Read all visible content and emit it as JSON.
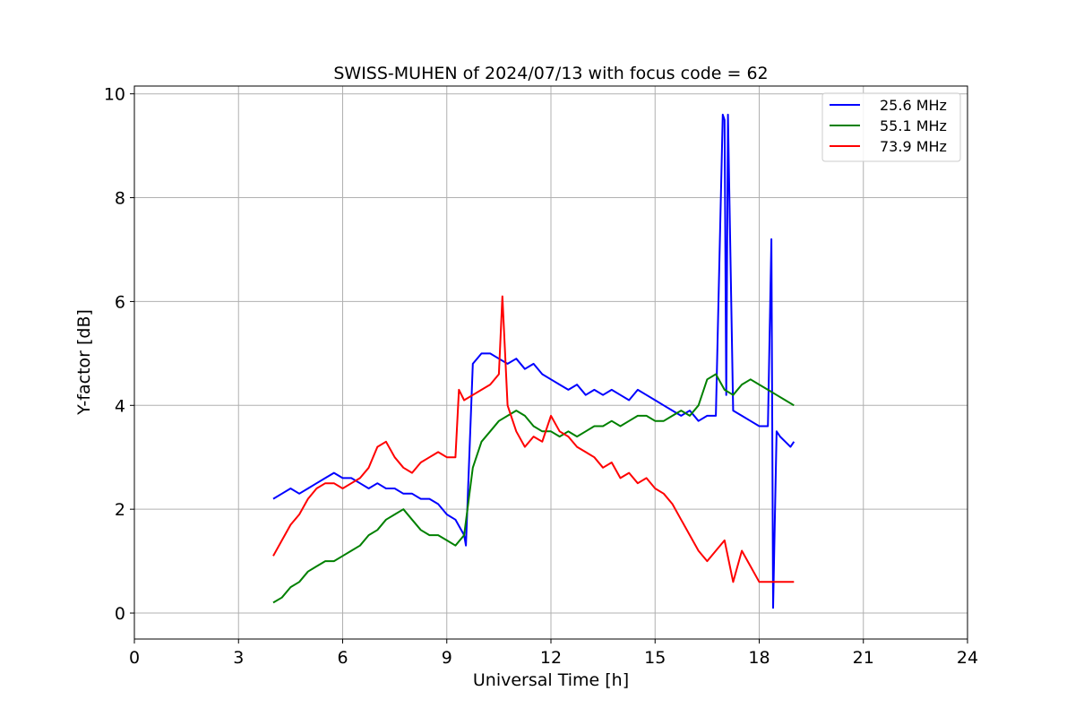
{
  "chart_data": {
    "type": "line",
    "title": "SWISS-MUHEN of 2024/07/13 with focus code = 62",
    "xlabel": "Universal Time [h]",
    "ylabel": "Y-factor [dB]",
    "xlim": [
      0,
      24
    ],
    "ylim": [
      -0.5,
      10.15
    ],
    "xticks": [
      0,
      3,
      6,
      9,
      12,
      15,
      18,
      21,
      24
    ],
    "yticks": [
      0,
      2,
      4,
      6,
      8,
      10
    ],
    "grid": true,
    "legend_position": "top-right",
    "series": [
      {
        "name": "25.6 MHz",
        "color": "#0000ff",
        "x": [
          4.0,
          4.25,
          4.5,
          4.75,
          5.0,
          5.25,
          5.5,
          5.75,
          6.0,
          6.25,
          6.5,
          6.75,
          7.0,
          7.25,
          7.5,
          7.75,
          8.0,
          8.25,
          8.5,
          8.75,
          9.0,
          9.25,
          9.5,
          9.55,
          9.75,
          10.0,
          10.25,
          10.5,
          10.75,
          11.0,
          11.25,
          11.5,
          11.75,
          12.0,
          12.25,
          12.5,
          12.75,
          13.0,
          13.25,
          13.5,
          13.75,
          14.0,
          14.25,
          14.5,
          14.75,
          15.0,
          15.25,
          15.5,
          15.75,
          16.0,
          16.25,
          16.5,
          16.75,
          16.95,
          17.0,
          17.05,
          17.1,
          17.25,
          17.5,
          17.75,
          18.0,
          18.25,
          18.35,
          18.4,
          18.5,
          18.6,
          18.75,
          18.9,
          19.0
        ],
        "y": [
          2.2,
          2.3,
          2.4,
          2.3,
          2.4,
          2.5,
          2.6,
          2.7,
          2.6,
          2.6,
          2.5,
          2.4,
          2.5,
          2.4,
          2.4,
          2.3,
          2.3,
          2.2,
          2.2,
          2.1,
          1.9,
          1.8,
          1.5,
          1.3,
          4.8,
          5.0,
          5.0,
          4.9,
          4.8,
          4.9,
          4.7,
          4.8,
          4.6,
          4.5,
          4.4,
          4.3,
          4.4,
          4.2,
          4.3,
          4.2,
          4.3,
          4.2,
          4.1,
          4.3,
          4.2,
          4.1,
          4.0,
          3.9,
          3.8,
          3.9,
          3.7,
          3.8,
          3.8,
          9.6,
          9.5,
          4.2,
          9.6,
          3.9,
          3.8,
          3.7,
          3.6,
          3.6,
          7.2,
          0.1,
          3.5,
          3.4,
          3.3,
          3.2,
          3.3
        ]
      },
      {
        "name": "55.1 MHz",
        "color": "#008000",
        "x": [
          4.0,
          4.25,
          4.5,
          4.75,
          5.0,
          5.25,
          5.5,
          5.75,
          6.0,
          6.25,
          6.5,
          6.75,
          7.0,
          7.25,
          7.5,
          7.75,
          8.0,
          8.25,
          8.5,
          8.75,
          9.0,
          9.25,
          9.5,
          9.75,
          10.0,
          10.25,
          10.5,
          10.75,
          11.0,
          11.25,
          11.5,
          11.75,
          12.0,
          12.25,
          12.5,
          12.75,
          13.0,
          13.25,
          13.5,
          13.75,
          14.0,
          14.25,
          14.5,
          14.75,
          15.0,
          15.25,
          15.5,
          15.75,
          16.0,
          16.25,
          16.5,
          16.75,
          17.0,
          17.25,
          17.5,
          17.75,
          18.0,
          18.25,
          18.5,
          18.75,
          19.0
        ],
        "y": [
          0.2,
          0.3,
          0.5,
          0.6,
          0.8,
          0.9,
          1.0,
          1.0,
          1.1,
          1.2,
          1.3,
          1.5,
          1.6,
          1.8,
          1.9,
          2.0,
          1.8,
          1.6,
          1.5,
          1.5,
          1.4,
          1.3,
          1.5,
          2.8,
          3.3,
          3.5,
          3.7,
          3.8,
          3.9,
          3.8,
          3.6,
          3.5,
          3.5,
          3.4,
          3.5,
          3.4,
          3.5,
          3.6,
          3.6,
          3.7,
          3.6,
          3.7,
          3.8,
          3.8,
          3.7,
          3.7,
          3.8,
          3.9,
          3.8,
          4.0,
          4.5,
          4.6,
          4.3,
          4.2,
          4.4,
          4.5,
          4.4,
          4.3,
          4.2,
          4.1,
          4.0
        ]
      },
      {
        "name": "73.9 MHz",
        "color": "#ff0000",
        "x": [
          4.0,
          4.25,
          4.5,
          4.75,
          5.0,
          5.25,
          5.5,
          5.75,
          6.0,
          6.25,
          6.5,
          6.75,
          7.0,
          7.25,
          7.5,
          7.75,
          8.0,
          8.25,
          8.5,
          8.75,
          9.0,
          9.25,
          9.35,
          9.5,
          9.75,
          10.0,
          10.25,
          10.5,
          10.6,
          10.75,
          11.0,
          11.25,
          11.5,
          11.75,
          12.0,
          12.25,
          12.5,
          12.75,
          13.0,
          13.25,
          13.5,
          13.75,
          14.0,
          14.25,
          14.5,
          14.75,
          15.0,
          15.25,
          15.5,
          15.75,
          16.0,
          16.25,
          16.5,
          16.75,
          17.0,
          17.25,
          17.5,
          17.75,
          18.0,
          18.25,
          18.5,
          18.75,
          19.0
        ],
        "y": [
          1.1,
          1.4,
          1.7,
          1.9,
          2.2,
          2.4,
          2.5,
          2.5,
          2.4,
          2.5,
          2.6,
          2.8,
          3.2,
          3.3,
          3.0,
          2.8,
          2.7,
          2.9,
          3.0,
          3.1,
          3.0,
          3.0,
          4.3,
          4.1,
          4.2,
          4.3,
          4.4,
          4.6,
          6.1,
          4.0,
          3.5,
          3.2,
          3.4,
          3.3,
          3.8,
          3.5,
          3.4,
          3.2,
          3.1,
          3.0,
          2.8,
          2.9,
          2.6,
          2.7,
          2.5,
          2.6,
          2.4,
          2.3,
          2.1,
          1.8,
          1.5,
          1.2,
          1.0,
          1.2,
          1.4,
          0.6,
          1.2,
          0.9,
          0.6,
          0.6,
          0.6,
          0.6,
          0.6
        ]
      }
    ]
  }
}
